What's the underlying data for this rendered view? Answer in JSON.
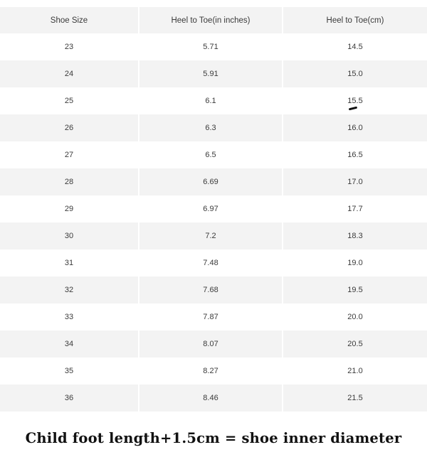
{
  "table": {
    "headers": [
      "Shoe Size",
      "Heel to Toe(in inches)",
      "Heel to Toe(cm)"
    ],
    "rows": [
      [
        "23",
        "5.71",
        "14.5"
      ],
      [
        "24",
        "5.91",
        "15.0"
      ],
      [
        "25",
        "6.1",
        "15.5"
      ],
      [
        "26",
        "6.3",
        "16.0"
      ],
      [
        "27",
        "6.5",
        "16.5"
      ],
      [
        "28",
        "6.69",
        "17.0"
      ],
      [
        "29",
        "6.97",
        "17.7"
      ],
      [
        "30",
        "7.2",
        "18.3"
      ],
      [
        "31",
        "7.48",
        "19.0"
      ],
      [
        "32",
        "7.68",
        "19.5"
      ],
      [
        "33",
        "7.87",
        "20.0"
      ],
      [
        "34",
        "8.07",
        "20.5"
      ],
      [
        "35",
        "8.27",
        "21.0"
      ],
      [
        "36",
        "8.46",
        "21.5"
      ]
    ]
  },
  "footnote": "Child foot length+1.5cm = shoe inner diameter"
}
